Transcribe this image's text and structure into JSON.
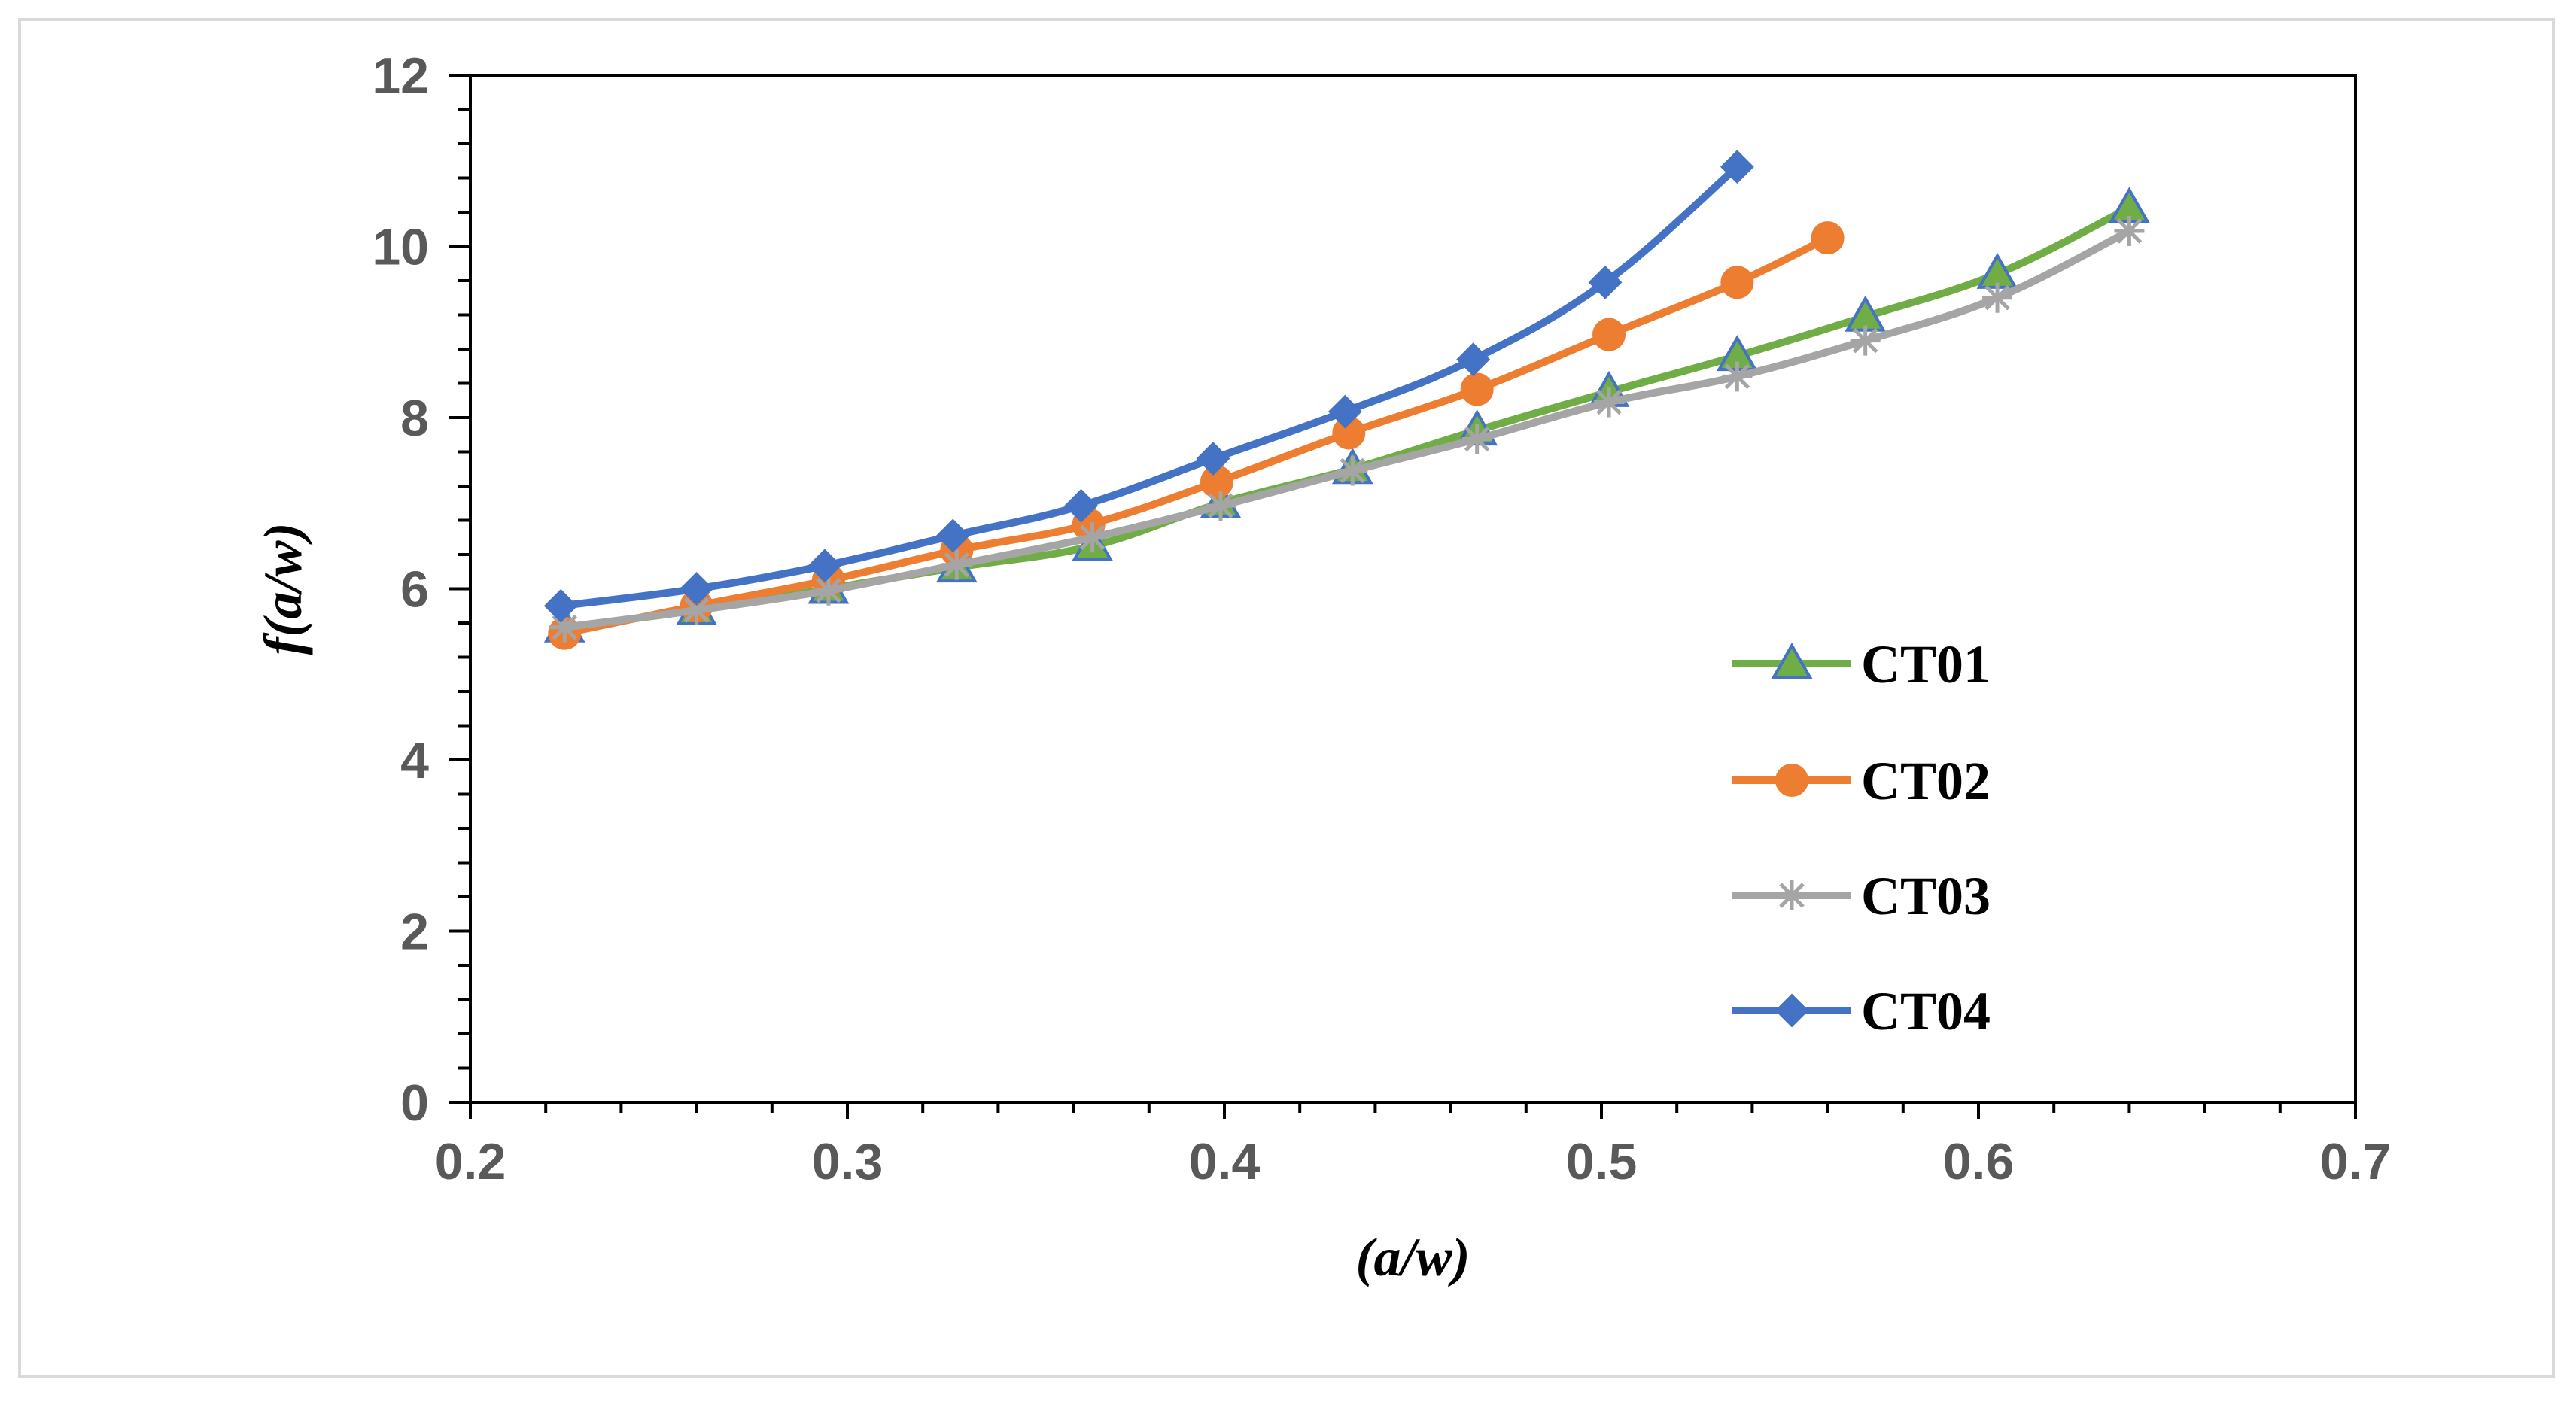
{
  "chart_data": {
    "type": "line",
    "title": "",
    "xlabel": "(a/w)",
    "ylabel": "f(a/w)",
    "xlim": [
      0.2,
      0.7
    ],
    "ylim": [
      0,
      12
    ],
    "x_ticks": [
      "0.2",
      "0.3",
      "0.4",
      "0.5",
      "0.6",
      "0.7"
    ],
    "x_tick_values": [
      0.2,
      0.3,
      0.4,
      0.5,
      0.6,
      0.7
    ],
    "y_ticks": [
      "0",
      "2",
      "4",
      "6",
      "8",
      "10",
      "12"
    ],
    "y_tick_values": [
      0,
      2,
      4,
      6,
      8,
      10,
      12
    ],
    "grid": false,
    "legend_position": "right",
    "series": [
      {
        "name": "CT01",
        "color": "#70ad47",
        "marker": "triangle",
        "x": [
          0.225,
          0.26,
          0.295,
          0.329,
          0.365,
          0.399,
          0.434,
          0.467,
          0.502,
          0.536,
          0.57,
          0.605,
          0.64
        ],
        "y": [
          5.55,
          5.75,
          6.0,
          6.25,
          6.5,
          7.0,
          7.4,
          7.85,
          8.3,
          8.72,
          9.18,
          9.68,
          10.45
        ]
      },
      {
        "name": "CT02",
        "color": "#ed7d31",
        "marker": "circle",
        "x": [
          0.225,
          0.26,
          0.295,
          0.329,
          0.364,
          0.398,
          0.433,
          0.467,
          0.502,
          0.536,
          0.56
        ],
        "y": [
          5.48,
          5.8,
          6.1,
          6.45,
          6.75,
          7.25,
          7.82,
          8.33,
          8.97,
          9.58,
          10.1
        ]
      },
      {
        "name": "CT03",
        "color": "#a5a5a5",
        "marker": "star",
        "x": [
          0.225,
          0.26,
          0.295,
          0.329,
          0.365,
          0.399,
          0.434,
          0.467,
          0.502,
          0.536,
          0.57,
          0.605,
          0.64
        ],
        "y": [
          5.55,
          5.75,
          5.98,
          6.28,
          6.6,
          6.97,
          7.38,
          7.75,
          8.18,
          8.48,
          8.9,
          9.4,
          10.18
        ]
      },
      {
        "name": "CT04",
        "color": "#4472c4",
        "marker": "diamond",
        "x": [
          0.224,
          0.26,
          0.294,
          0.328,
          0.362,
          0.397,
          0.432,
          0.466,
          0.501,
          0.536
        ],
        "y": [
          5.8,
          6.0,
          6.27,
          6.62,
          6.97,
          7.52,
          8.07,
          8.68,
          9.58,
          10.93
        ]
      }
    ]
  }
}
